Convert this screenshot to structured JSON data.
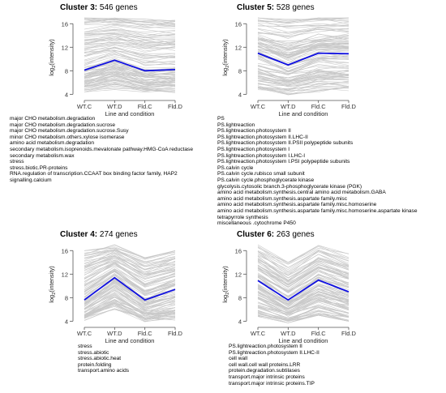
{
  "chart_data": [
    {
      "type": "line",
      "title_name": "Cluster 3:",
      "title_count": "546 genes",
      "xlabel": "Line and condition",
      "ylabel_base": "log",
      "ylabel_sub": "2",
      "ylabel_rest": "(intensity)",
      "categories": [
        "WT.C",
        "WT.D",
        "Fld.C",
        "Fld.D"
      ],
      "ylim": [
        3.5,
        17
      ],
      "yticks": [
        4,
        8,
        12,
        16
      ],
      "series": [
        {
          "values": [
            8.1,
            9.8,
            8.0,
            8.2
          ]
        }
      ],
      "band": {
        "upper": [
          17.0,
          17.0,
          16.8,
          16.6
        ],
        "lower": [
          4.4,
          4.8,
          4.2,
          4.3
        ]
      },
      "terms": [
        "major CHO metabolism.degradation",
        "major CHO metabolism.degradation.sucrose",
        "major CHO metabolism.degradation.sucrose.Susy",
        "minor CHO metabolism.others.xylose isomerase",
        "amino acid metabolism.degradation",
        "secondary metabolism.isoprenoids.mevalonate pathway.HMG-CoA reductase",
        "secondary metabolism.wax",
        "stress",
        "stress.biotic.PR-proteins",
        "RNA.regulation of transcription.CCAAT box binding factor family, HAP2",
        "signalling.calcium"
      ]
    },
    {
      "type": "line",
      "title_name": "Cluster 5:",
      "title_count": "528 genes",
      "xlabel": "Line and condition",
      "ylabel_base": "log",
      "ylabel_sub": "2",
      "ylabel_rest": "(intensity)",
      "categories": [
        "WT.C",
        "WT.D",
        "Fld.C",
        "Fld.D"
      ],
      "ylim": [
        3.5,
        17
      ],
      "yticks": [
        4,
        8,
        12,
        16
      ],
      "series": [
        {
          "values": [
            11.0,
            9.0,
            11.0,
            10.9
          ]
        }
      ],
      "band": {
        "upper": [
          17.0,
          16.8,
          17.0,
          17.0
        ],
        "lower": [
          4.5,
          3.9,
          4.4,
          4.6
        ]
      },
      "terms": [
        "PS",
        "PS.lightreaction",
        "PS.lightreaction.photosystem II",
        "PS.lightreaction.photosystem II.LHC-II",
        "PS.lightreaction.photosystem II.PSII polypeptide subunits",
        "PS.lightreaction.photosystem I",
        "PS.lightreaction.photosystem I.LHC-I",
        "PS.lightreaction.photosystem I.PSI polypeptide subunits",
        "PS.calvin cycle",
        "PS.calvin cycle.rubisco small subunit",
        "PS.calvin cycle.phosphoglycerate kinase",
        "glycolysis.cytosolic branch.3-phosphoglycerate kinase (PGK)",
        "amino acid metabolism.synthesis.central amino acid metabolism.GABA",
        "amino acid metabolism.synthesis.aspartate family.misc",
        "amino acid metabolism.synthesis.aspartate family.misc.homoserine",
        "amino acid metabolism.synthesis.aspartate family.misc.homoserine.aspartate kinase",
        "tetrapyrrole synthesis",
        "miscellaneous .cytochrome P450"
      ]
    },
    {
      "type": "line",
      "title_name": "Cluster 4:",
      "title_count": "274 genes",
      "xlabel": "Line and condition",
      "ylabel_base": "log",
      "ylabel_sub": "2",
      "ylabel_rest": "(intensity)",
      "categories": [
        "WT.C",
        "WT.D",
        "Fld.C",
        "Fld.D"
      ],
      "ylim": [
        3.5,
        17
      ],
      "yticks": [
        4,
        8,
        12,
        16
      ],
      "series": [
        {
          "values": [
            7.6,
            11.4,
            7.6,
            9.4
          ]
        }
      ],
      "band": {
        "upper": [
          16.0,
          17.0,
          14.8,
          16.0
        ],
        "lower": [
          4.1,
          6.0,
          3.9,
          4.2
        ]
      },
      "terms": [
        "stress",
        "stress.abiotic",
        "stress.abiotic.heat",
        "protein.folding",
        "transport.amino acids"
      ]
    },
    {
      "type": "line",
      "title_name": "Cluster 6:",
      "title_count": "263 genes",
      "xlabel": "Line and condition",
      "ylabel_base": "log",
      "ylabel_sub": "2",
      "ylabel_rest": "(intensity)",
      "categories": [
        "WT.C",
        "WT.D",
        "Fld.C",
        "Fld.D"
      ],
      "ylim": [
        3.5,
        17
      ],
      "yticks": [
        4,
        8,
        12,
        16
      ],
      "series": [
        {
          "values": [
            10.9,
            7.6,
            11.0,
            9.0
          ]
        }
      ],
      "band": {
        "upper": [
          17.0,
          14.0,
          17.0,
          15.5
        ],
        "lower": [
          4.8,
          3.7,
          5.0,
          4.0
        ]
      },
      "terms": [
        "PS.lightreaction.photosystem II",
        "PS.lightreaction.photosystem II.LHC-II",
        "cell wall",
        "cell wall.cell wall proteins.LRR",
        "protein.degradation.subtilases",
        "transport.major intrinsic proteins",
        "transport.major intrinsic proteins.TIP"
      ]
    }
  ],
  "colors": {
    "mean_line": "#1010e0",
    "profile_lines": "#c8c8c8",
    "axis": "#555555"
  }
}
